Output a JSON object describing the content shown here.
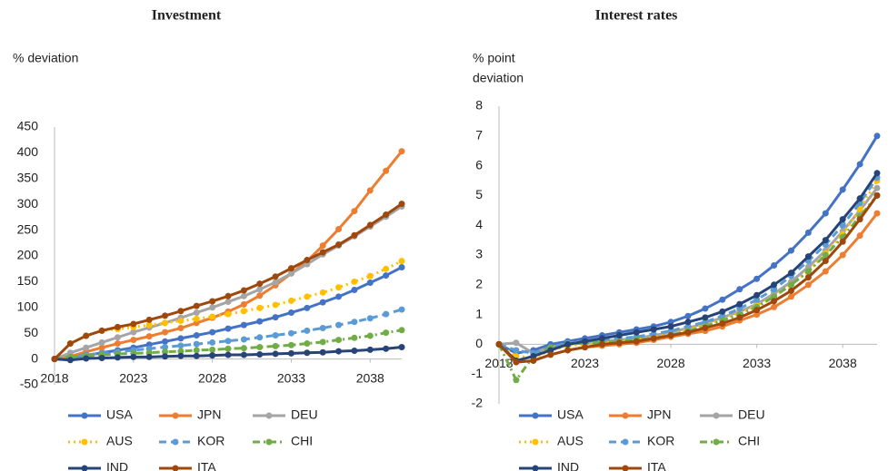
{
  "chart_data": [
    {
      "type": "line",
      "title": "Investment",
      "y_label": [
        "% deviation"
      ],
      "x": [
        2018,
        2019,
        2020,
        2021,
        2022,
        2023,
        2024,
        2025,
        2026,
        2027,
        2028,
        2029,
        2030,
        2031,
        2032,
        2033,
        2034,
        2035,
        2036,
        2037,
        2038,
        2039,
        2040
      ],
      "xlim": [
        2018,
        2040
      ],
      "xticks": [
        2018,
        2023,
        2028,
        2033,
        2038
      ],
      "ylim": [
        -50,
        450
      ],
      "yticks": [
        -50,
        0,
        50,
        100,
        150,
        200,
        250,
        300,
        350,
        400,
        450
      ],
      "series": [
        {
          "name": "USA",
          "color": "#4472c4",
          "values": [
            0,
            3,
            7,
            12,
            17,
            22,
            28,
            34,
            40,
            46,
            52,
            59,
            66,
            73,
            81,
            90,
            99,
            110,
            121,
            134,
            148,
            162,
            178
          ]
        },
        {
          "name": "JPN",
          "color": "#ed7d31",
          "values": [
            0,
            5,
            14,
            22,
            30,
            37,
            44,
            52,
            60,
            70,
            80,
            92,
            106,
            123,
            143,
            166,
            190,
            220,
            252,
            287,
            327,
            365,
            403
          ]
        },
        {
          "name": "DEU",
          "color": "#a5a5a5",
          "values": [
            0,
            12,
            22,
            32,
            42,
            52,
            61,
            70,
            80,
            90,
            100,
            111,
            122,
            135,
            149,
            166,
            184,
            203,
            220,
            238,
            257,
            276,
            296
          ]
        },
        {
          "name": "AUS",
          "color": "#ffc000",
          "dash": "dotted",
          "values": [
            0,
            30,
            45,
            55,
            58,
            62,
            66,
            70,
            74,
            78,
            82,
            87,
            93,
            99,
            105,
            113,
            121,
            129,
            139,
            150,
            161,
            175,
            190
          ]
        },
        {
          "name": "KOR",
          "color": "#5b9bd5",
          "dash": "dashed",
          "values": [
            0,
            4,
            8,
            11,
            14,
            17,
            20,
            23,
            26,
            29,
            32,
            35,
            38,
            42,
            46,
            50,
            55,
            60,
            66,
            72,
            79,
            87,
            96
          ]
        },
        {
          "name": "CHI",
          "color": "#70ad47",
          "dash": "dashdot",
          "values": [
            0,
            4,
            6,
            8,
            10,
            11,
            12,
            14,
            15,
            17,
            18,
            20,
            21,
            23,
            25,
            27,
            30,
            33,
            37,
            41,
            45,
            51,
            56
          ]
        },
        {
          "name": "IND",
          "color": "#264478",
          "values": [
            0,
            -2,
            1,
            2,
            3,
            4,
            4,
            5,
            6,
            6,
            7,
            8,
            8,
            9,
            10,
            11,
            12,
            13,
            15,
            16,
            18,
            20,
            23
          ]
        },
        {
          "name": "ITA",
          "color": "#9e480e",
          "values": [
            0,
            30,
            45,
            55,
            62,
            68,
            76,
            84,
            93,
            103,
            112,
            122,
            133,
            146,
            160,
            176,
            192,
            207,
            222,
            240,
            260,
            280,
            301
          ]
        }
      ]
    },
    {
      "type": "line",
      "title": "Interest rates",
      "y_label": [
        "% point",
        "deviation"
      ],
      "x": [
        2018,
        2019,
        2020,
        2021,
        2022,
        2023,
        2024,
        2025,
        2026,
        2027,
        2028,
        2029,
        2030,
        2031,
        2032,
        2033,
        2034,
        2035,
        2036,
        2037,
        2038,
        2039,
        2040
      ],
      "xlim": [
        2018,
        2040
      ],
      "xticks": [
        2018,
        2023,
        2028,
        2033,
        2038
      ],
      "ylim": [
        -2,
        8
      ],
      "yticks": [
        -2,
        -1,
        0,
        1,
        2,
        3,
        4,
        5,
        6,
        7,
        8
      ],
      "series": [
        {
          "name": "USA",
          "color": "#4472c4",
          "values": [
            0,
            -0.3,
            -0.2,
            0,
            0.1,
            0.2,
            0.3,
            0.4,
            0.5,
            0.6,
            0.75,
            0.95,
            1.2,
            1.5,
            1.85,
            2.2,
            2.65,
            3.15,
            3.75,
            4.4,
            5.2,
            6.05,
            7.0
          ]
        },
        {
          "name": "JPN",
          "color": "#ed7d31",
          "values": [
            0,
            -0.6,
            -0.55,
            -0.35,
            -0.2,
            -0.1,
            -0.05,
            0,
            0.05,
            0.15,
            0.25,
            0.35,
            0.45,
            0.6,
            0.8,
            1.0,
            1.25,
            1.6,
            2.0,
            2.45,
            3.0,
            3.65,
            4.4
          ]
        },
        {
          "name": "DEU",
          "color": "#a5a5a5",
          "values": [
            0,
            0.05,
            -0.3,
            -0.1,
            0,
            0.05,
            0.1,
            0.15,
            0.2,
            0.3,
            0.4,
            0.55,
            0.7,
            0.9,
            1.1,
            1.35,
            1.7,
            2.1,
            2.6,
            3.15,
            3.8,
            4.5,
            5.25
          ]
        },
        {
          "name": "AUS",
          "color": "#ffc000",
          "dash": "dotted",
          "values": [
            0,
            -0.4,
            -0.45,
            -0.2,
            -0.05,
            0,
            0.05,
            0.1,
            0.15,
            0.25,
            0.35,
            0.5,
            0.65,
            0.85,
            1.05,
            1.3,
            1.6,
            2.0,
            2.45,
            3.05,
            3.7,
            4.55,
            5.5
          ]
        },
        {
          "name": "KOR",
          "color": "#5b9bd5",
          "dash": "dashed",
          "values": [
            0,
            -0.2,
            -0.3,
            -0.1,
            0.05,
            0.1,
            0.15,
            0.2,
            0.25,
            0.35,
            0.45,
            0.6,
            0.75,
            0.95,
            1.2,
            1.5,
            1.85,
            2.3,
            2.8,
            3.35,
            4.0,
            4.75,
            5.6
          ]
        },
        {
          "name": "CHI",
          "color": "#70ad47",
          "dash": "dashdot",
          "values": [
            0,
            -1.2,
            -0.4,
            -0.1,
            0,
            0.05,
            0.05,
            0.1,
            0.15,
            0.2,
            0.3,
            0.45,
            0.6,
            0.8,
            1.0,
            1.25,
            1.6,
            2.0,
            2.45,
            3.0,
            3.6,
            4.3,
            5.0
          ]
        },
        {
          "name": "IND",
          "color": "#264478",
          "values": [
            0,
            -0.55,
            -0.4,
            -0.2,
            0,
            0.1,
            0.2,
            0.3,
            0.4,
            0.5,
            0.6,
            0.75,
            0.9,
            1.1,
            1.35,
            1.65,
            2.0,
            2.4,
            2.95,
            3.5,
            4.2,
            4.9,
            5.75
          ]
        },
        {
          "name": "ITA",
          "color": "#9e480e",
          "values": [
            0,
            -0.6,
            -0.55,
            -0.35,
            -0.2,
            -0.1,
            0,
            0.05,
            0.1,
            0.2,
            0.3,
            0.4,
            0.55,
            0.7,
            0.9,
            1.15,
            1.45,
            1.8,
            2.25,
            2.8,
            3.45,
            4.2,
            5.0
          ]
        }
      ]
    }
  ]
}
